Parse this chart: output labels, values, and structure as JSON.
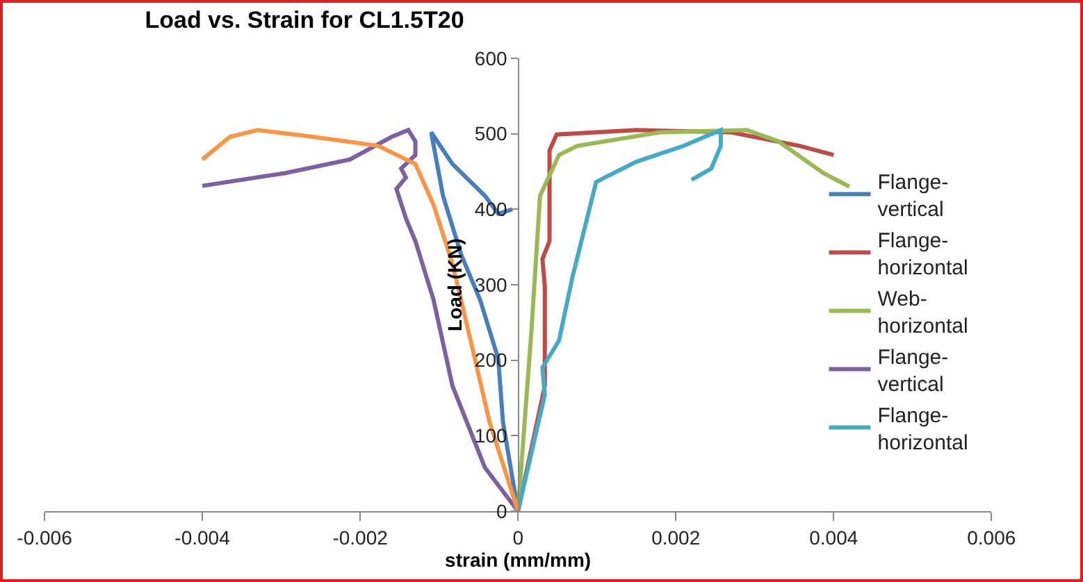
{
  "chart_data": {
    "type": "line",
    "title": "Load vs. Strain for CL1.5T20",
    "xlabel": "strain (mm/mm)",
    "ylabel": "Load (KN)",
    "xlim": [
      -0.006,
      0.006
    ],
    "xticks": [
      -0.006,
      -0.004,
      -0.002,
      0,
      0.002,
      0.004,
      0.006
    ],
    "ylim": [
      0,
      600
    ],
    "yticks": [
      0,
      100,
      200,
      300,
      400,
      500,
      600
    ],
    "grid": false,
    "legend": "right",
    "marker": "none",
    "line_style": "solid",
    "series": [
      {
        "name": "Flange-vertical",
        "color": "#4a7ebb",
        "x": [
          0,
          -0.00019,
          -0.00025,
          -0.00048,
          -0.00072,
          -0.00095,
          -0.0011,
          -0.00083,
          -0.00042,
          -0.00025,
          -7e-05
        ],
        "values": [
          0,
          118,
          202,
          280,
          340,
          418,
          502,
          460,
          418,
          394,
          400
        ]
      },
      {
        "name": "Flange-horizontal",
        "color": "#be4b48",
        "x": [
          0,
          0.00034,
          0.00034,
          0.00031,
          0.0004,
          0.0004,
          0.00049,
          0.0015,
          0.0027,
          0.00357,
          0.004
        ],
        "values": [
          0,
          166,
          298,
          334,
          358,
          478,
          499,
          505,
          502,
          484,
          472
        ]
      },
      {
        "name": "Web-horizontal",
        "color": "#98b954",
        "x": [
          0,
          0.00017,
          0.00028,
          0.00052,
          0.00075,
          0.0018,
          0.0029,
          0.0033,
          0.00387,
          0.0042
        ],
        "values": [
          0,
          238,
          418,
          472,
          484,
          502,
          505,
          490,
          448,
          430
        ]
      },
      {
        "name": "Flange-vertical",
        "color": "#7d60a0",
        "x": [
          0,
          -0.00042,
          -0.00083,
          -0.00107,
          -0.0013,
          -0.00142,
          -0.00154,
          -0.00142,
          -0.00148,
          -0.0013,
          -0.0013,
          -0.00139,
          -0.0016,
          -0.00213,
          -0.00295,
          -0.004
        ],
        "values": [
          0,
          58,
          166,
          280,
          358,
          388,
          427,
          442,
          454,
          472,
          490,
          505,
          496,
          466,
          448,
          431
        ]
      },
      {
        "name": "Flange-horizontal",
        "color": "#46aac5",
        "x": [
          0,
          0.00034,
          0.00031,
          0.00052,
          0.00069,
          0.00099,
          0.0011,
          0.0015,
          0.0021,
          0.00257,
          0.00257,
          0.00245,
          0.0022
        ],
        "values": [
          0,
          154,
          190,
          226,
          310,
          436,
          442,
          463,
          484,
          505,
          484,
          454,
          439
        ]
      },
      {
        "color": "#f79646",
        "x": [
          0,
          -0.00036,
          -0.0006,
          -0.00083,
          -0.00107,
          -0.0013,
          -0.00177,
          -0.0026,
          -0.0033,
          -0.00365,
          -0.004
        ],
        "values": [
          0,
          118,
          226,
          328,
          406,
          460,
          484,
          496,
          505,
          496,
          466
        ]
      }
    ]
  }
}
